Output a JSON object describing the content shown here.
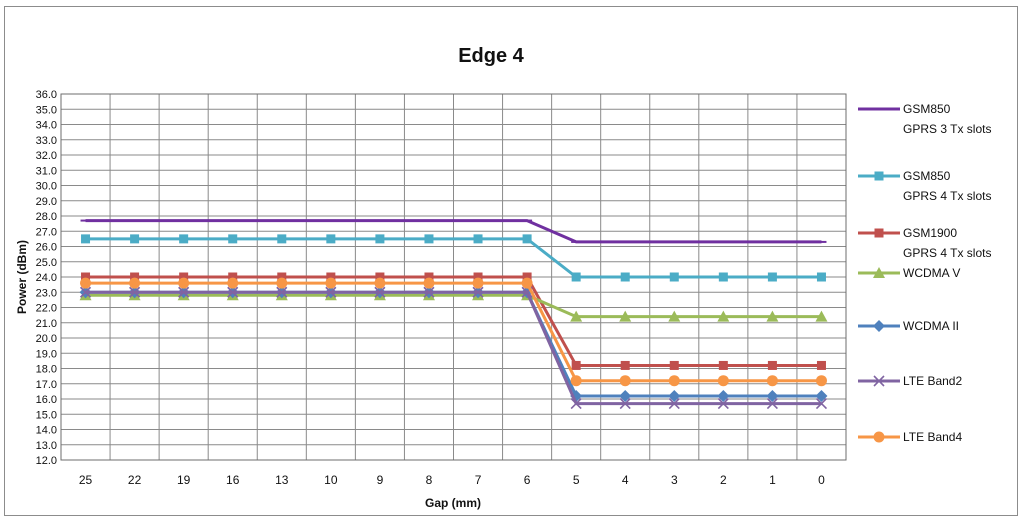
{
  "chart_data": {
    "type": "line",
    "title": "Edge 4",
    "xlabel": "Gap (mm)",
    "ylabel": "Power (dBm)",
    "categories": [
      "25",
      "22",
      "19",
      "16",
      "13",
      "10",
      "9",
      "8",
      "7",
      "6",
      "5",
      "4",
      "3",
      "2",
      "1",
      "0"
    ],
    "ylim": [
      12.0,
      36.0
    ],
    "ytick_step": 1.0,
    "yticks": [
      "12.0",
      "13.0",
      "14.0",
      "15.0",
      "16.0",
      "17.0",
      "18.0",
      "19.0",
      "20.0",
      "21.0",
      "22.0",
      "23.0",
      "24.0",
      "25.0",
      "26.0",
      "27.0",
      "28.0",
      "29.0",
      "30.0",
      "31.0",
      "32.0",
      "33.0",
      "34.0",
      "35.0",
      "36.0"
    ],
    "grid": true,
    "legend_position": "right",
    "series": [
      {
        "name": "GSM850",
        "name2": "GPRS 3 Tx slots",
        "color": "#7030a0",
        "marker": "dash",
        "values": [
          27.7,
          27.7,
          27.7,
          27.7,
          27.7,
          27.7,
          27.7,
          27.7,
          27.7,
          27.7,
          26.3,
          26.3,
          26.3,
          26.3,
          26.3,
          26.3
        ]
      },
      {
        "name": "GSM850",
        "name2": "GPRS 4 Tx slots",
        "color": "#4bacc6",
        "marker": "square",
        "values": [
          26.5,
          26.5,
          26.5,
          26.5,
          26.5,
          26.5,
          26.5,
          26.5,
          26.5,
          26.5,
          24.0,
          24.0,
          24.0,
          24.0,
          24.0,
          24.0
        ]
      },
      {
        "name": "GSM1900",
        "name2": "GPRS 4 Tx slots",
        "color": "#c0504d",
        "marker": "square",
        "values": [
          24.0,
          24.0,
          24.0,
          24.0,
          24.0,
          24.0,
          24.0,
          24.0,
          24.0,
          24.0,
          18.2,
          18.2,
          18.2,
          18.2,
          18.2,
          18.2
        ]
      },
      {
        "name": "WCDMA V",
        "name2": "",
        "color": "#9bbb59",
        "marker": "triangle",
        "values": [
          22.8,
          22.8,
          22.8,
          22.8,
          22.8,
          22.8,
          22.8,
          22.8,
          22.8,
          22.8,
          21.4,
          21.4,
          21.4,
          21.4,
          21.4,
          21.4
        ]
      },
      {
        "name": "WCDMA II",
        "name2": "",
        "color": "#4f81bd",
        "marker": "diamond",
        "values": [
          23.0,
          23.0,
          23.0,
          23.0,
          23.0,
          23.0,
          23.0,
          23.0,
          23.0,
          23.0,
          16.2,
          16.2,
          16.2,
          16.2,
          16.2,
          16.2
        ]
      },
      {
        "name": "LTE Band2",
        "name2": "",
        "color": "#8064a2",
        "marker": "x",
        "values": [
          23.0,
          23.0,
          23.0,
          23.0,
          23.0,
          23.0,
          23.0,
          23.0,
          23.0,
          23.0,
          15.7,
          15.7,
          15.7,
          15.7,
          15.7,
          15.7
        ]
      },
      {
        "name": "LTE Band4",
        "name2": "",
        "color": "#f79646",
        "marker": "circle",
        "values": [
          23.6,
          23.6,
          23.6,
          23.6,
          23.6,
          23.6,
          23.6,
          23.6,
          23.6,
          23.6,
          17.2,
          17.2,
          17.2,
          17.2,
          17.2,
          17.2
        ]
      }
    ]
  }
}
